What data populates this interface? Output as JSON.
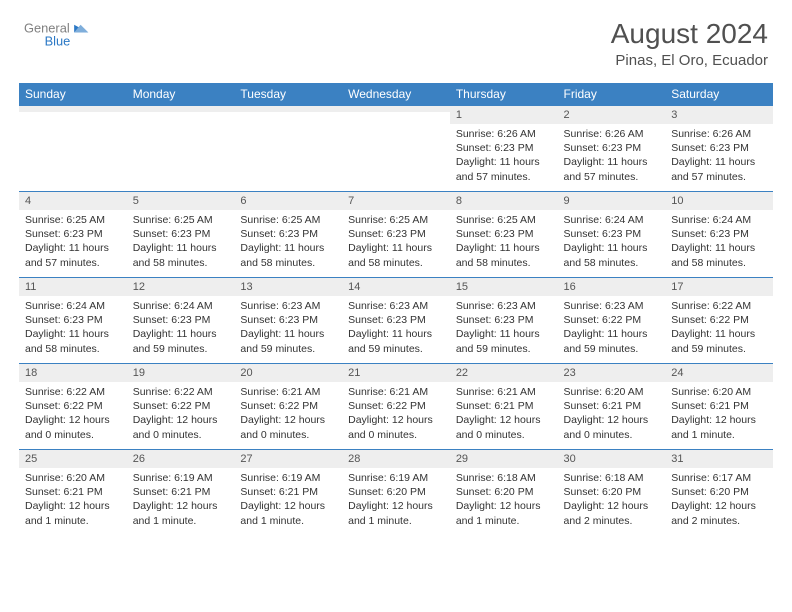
{
  "header": {
    "logo": {
      "text_top": "General",
      "text_bottom": "Blue",
      "color_gray": "#808080",
      "color_blue": "#2b78c5"
    },
    "title": "August 2024",
    "subtitle": "Pinas, El Oro, Ecuador"
  },
  "calendar": {
    "header_bg": "#3b81c2",
    "header_fg": "#ffffff",
    "daynum_bg": "#eeeeee",
    "border_color": "#3b81c2",
    "weekdays": [
      "Sunday",
      "Monday",
      "Tuesday",
      "Wednesday",
      "Thursday",
      "Friday",
      "Saturday"
    ],
    "weeks": [
      [
        {
          "day": "",
          "lines": []
        },
        {
          "day": "",
          "lines": []
        },
        {
          "day": "",
          "lines": []
        },
        {
          "day": "",
          "lines": []
        },
        {
          "day": "1",
          "lines": [
            "Sunrise: 6:26 AM",
            "Sunset: 6:23 PM",
            "Daylight: 11 hours and 57 minutes."
          ]
        },
        {
          "day": "2",
          "lines": [
            "Sunrise: 6:26 AM",
            "Sunset: 6:23 PM",
            "Daylight: 11 hours and 57 minutes."
          ]
        },
        {
          "day": "3",
          "lines": [
            "Sunrise: 6:26 AM",
            "Sunset: 6:23 PM",
            "Daylight: 11 hours and 57 minutes."
          ]
        }
      ],
      [
        {
          "day": "4",
          "lines": [
            "Sunrise: 6:25 AM",
            "Sunset: 6:23 PM",
            "Daylight: 11 hours and 57 minutes."
          ]
        },
        {
          "day": "5",
          "lines": [
            "Sunrise: 6:25 AM",
            "Sunset: 6:23 PM",
            "Daylight: 11 hours and 58 minutes."
          ]
        },
        {
          "day": "6",
          "lines": [
            "Sunrise: 6:25 AM",
            "Sunset: 6:23 PM",
            "Daylight: 11 hours and 58 minutes."
          ]
        },
        {
          "day": "7",
          "lines": [
            "Sunrise: 6:25 AM",
            "Sunset: 6:23 PM",
            "Daylight: 11 hours and 58 minutes."
          ]
        },
        {
          "day": "8",
          "lines": [
            "Sunrise: 6:25 AM",
            "Sunset: 6:23 PM",
            "Daylight: 11 hours and 58 minutes."
          ]
        },
        {
          "day": "9",
          "lines": [
            "Sunrise: 6:24 AM",
            "Sunset: 6:23 PM",
            "Daylight: 11 hours and 58 minutes."
          ]
        },
        {
          "day": "10",
          "lines": [
            "Sunrise: 6:24 AM",
            "Sunset: 6:23 PM",
            "Daylight: 11 hours and 58 minutes."
          ]
        }
      ],
      [
        {
          "day": "11",
          "lines": [
            "Sunrise: 6:24 AM",
            "Sunset: 6:23 PM",
            "Daylight: 11 hours and 58 minutes."
          ]
        },
        {
          "day": "12",
          "lines": [
            "Sunrise: 6:24 AM",
            "Sunset: 6:23 PM",
            "Daylight: 11 hours and 59 minutes."
          ]
        },
        {
          "day": "13",
          "lines": [
            "Sunrise: 6:23 AM",
            "Sunset: 6:23 PM",
            "Daylight: 11 hours and 59 minutes."
          ]
        },
        {
          "day": "14",
          "lines": [
            "Sunrise: 6:23 AM",
            "Sunset: 6:23 PM",
            "Daylight: 11 hours and 59 minutes."
          ]
        },
        {
          "day": "15",
          "lines": [
            "Sunrise: 6:23 AM",
            "Sunset: 6:23 PM",
            "Daylight: 11 hours and 59 minutes."
          ]
        },
        {
          "day": "16",
          "lines": [
            "Sunrise: 6:23 AM",
            "Sunset: 6:22 PM",
            "Daylight: 11 hours and 59 minutes."
          ]
        },
        {
          "day": "17",
          "lines": [
            "Sunrise: 6:22 AM",
            "Sunset: 6:22 PM",
            "Daylight: 11 hours and 59 minutes."
          ]
        }
      ],
      [
        {
          "day": "18",
          "lines": [
            "Sunrise: 6:22 AM",
            "Sunset: 6:22 PM",
            "Daylight: 12 hours and 0 minutes."
          ]
        },
        {
          "day": "19",
          "lines": [
            "Sunrise: 6:22 AM",
            "Sunset: 6:22 PM",
            "Daylight: 12 hours and 0 minutes."
          ]
        },
        {
          "day": "20",
          "lines": [
            "Sunrise: 6:21 AM",
            "Sunset: 6:22 PM",
            "Daylight: 12 hours and 0 minutes."
          ]
        },
        {
          "day": "21",
          "lines": [
            "Sunrise: 6:21 AM",
            "Sunset: 6:22 PM",
            "Daylight: 12 hours and 0 minutes."
          ]
        },
        {
          "day": "22",
          "lines": [
            "Sunrise: 6:21 AM",
            "Sunset: 6:21 PM",
            "Daylight: 12 hours and 0 minutes."
          ]
        },
        {
          "day": "23",
          "lines": [
            "Sunrise: 6:20 AM",
            "Sunset: 6:21 PM",
            "Daylight: 12 hours and 0 minutes."
          ]
        },
        {
          "day": "24",
          "lines": [
            "Sunrise: 6:20 AM",
            "Sunset: 6:21 PM",
            "Daylight: 12 hours and 1 minute."
          ]
        }
      ],
      [
        {
          "day": "25",
          "lines": [
            "Sunrise: 6:20 AM",
            "Sunset: 6:21 PM",
            "Daylight: 12 hours and 1 minute."
          ]
        },
        {
          "day": "26",
          "lines": [
            "Sunrise: 6:19 AM",
            "Sunset: 6:21 PM",
            "Daylight: 12 hours and 1 minute."
          ]
        },
        {
          "day": "27",
          "lines": [
            "Sunrise: 6:19 AM",
            "Sunset: 6:21 PM",
            "Daylight: 12 hours and 1 minute."
          ]
        },
        {
          "day": "28",
          "lines": [
            "Sunrise: 6:19 AM",
            "Sunset: 6:20 PM",
            "Daylight: 12 hours and 1 minute."
          ]
        },
        {
          "day": "29",
          "lines": [
            "Sunrise: 6:18 AM",
            "Sunset: 6:20 PM",
            "Daylight: 12 hours and 1 minute."
          ]
        },
        {
          "day": "30",
          "lines": [
            "Sunrise: 6:18 AM",
            "Sunset: 6:20 PM",
            "Daylight: 12 hours and 2 minutes."
          ]
        },
        {
          "day": "31",
          "lines": [
            "Sunrise: 6:17 AM",
            "Sunset: 6:20 PM",
            "Daylight: 12 hours and 2 minutes."
          ]
        }
      ]
    ]
  }
}
